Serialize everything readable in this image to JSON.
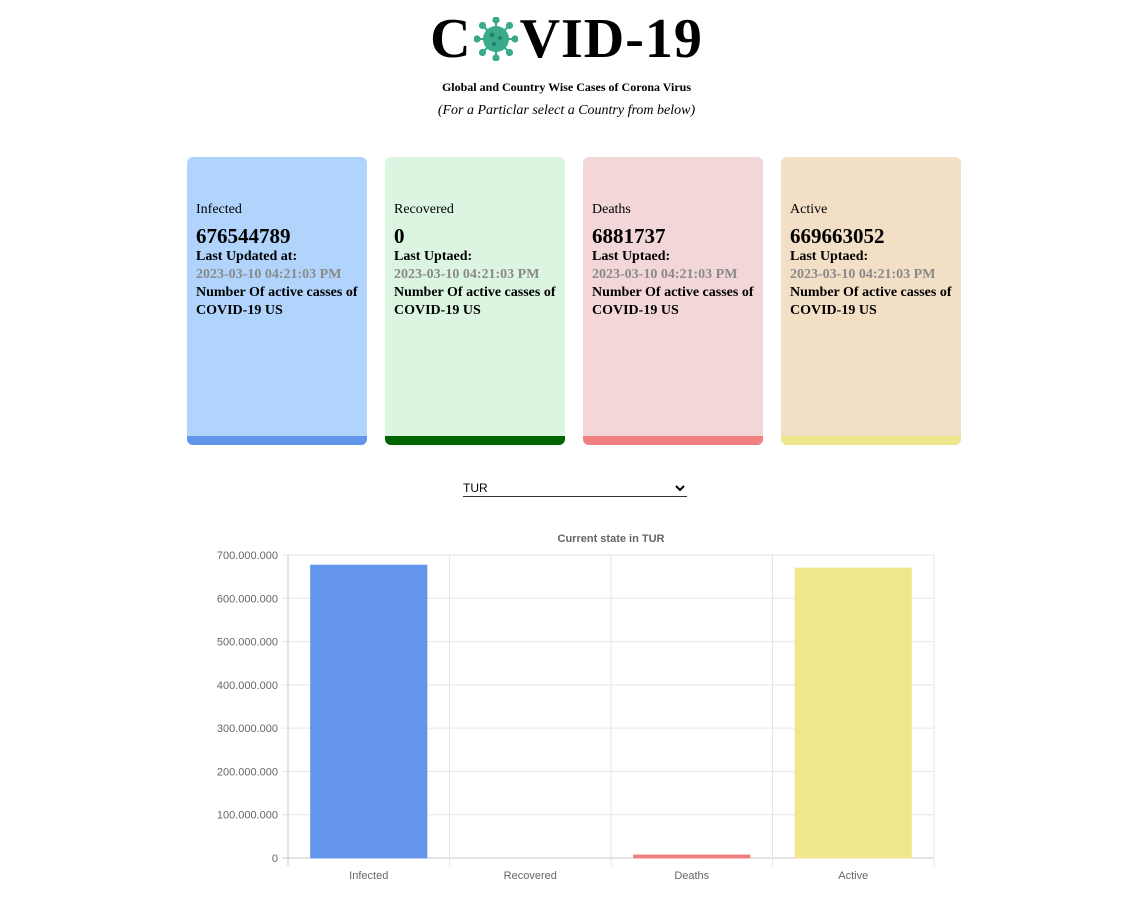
{
  "logo": {
    "text_before": "C",
    "text_after": "VID-19",
    "icon": "virus-icon",
    "icon_color": "#3aaa8c"
  },
  "subtitle": "Global and Country Wise Cases of Corona Virus",
  "hint": "(For a Particlar select a Country from below)",
  "cards": [
    {
      "key": "infected",
      "title": "Infected",
      "number": "676544789",
      "updated_label": "Last Updated at:",
      "updated_value": "2023-03-10 04:21:03 PM",
      "description": "Number Of active casses of COVID-19 US",
      "bg_color": "#b0d4fb",
      "bar_color": "#6495ed"
    },
    {
      "key": "recovered",
      "title": "Recovered",
      "number": "0",
      "updated_label": "Last Uptaed:",
      "updated_value": "2023-03-10 04:21:03 PM",
      "description": "Number Of active casses of COVID-19 US",
      "bg_color": "#dbf5e1",
      "bar_color": "#006400"
    },
    {
      "key": "deaths",
      "title": "Deaths",
      "number": "6881737",
      "updated_label": "Last Uptaed:",
      "updated_value": "2023-03-10 04:21:03 PM",
      "description": "Number Of active casses of COVID-19 US",
      "bg_color": "#f3d6d8",
      "bar_color": "#f08080"
    },
    {
      "key": "active",
      "title": "Active",
      "number": "669663052",
      "updated_label": "Last Uptaed:",
      "updated_value": "2023-03-10 04:21:03 PM",
      "description": "Number Of active casses of COVID-19 US",
      "bg_color": "#f2dfc6",
      "bar_color": "#f0e68c"
    }
  ],
  "country_select": {
    "selected": "TUR",
    "icon": "chevron-down-icon"
  },
  "chart_data": {
    "type": "bar",
    "title": "Current state in TUR",
    "categories": [
      "Infected",
      "Recovered",
      "Deaths",
      "Active"
    ],
    "values": [
      676544789,
      0,
      6881737,
      669663052
    ],
    "colors": [
      "#6495ed",
      "#006400",
      "#f08080",
      "#f0e68c"
    ],
    "ylim": [
      0,
      700000000
    ],
    "yticks": [
      0,
      100000000,
      200000000,
      300000000,
      400000000,
      500000000,
      600000000,
      700000000
    ],
    "ytick_labels": [
      "0",
      "100.000.000",
      "200.000.000",
      "300.000.000",
      "400.000.000",
      "500.000.000",
      "600.000.000",
      "700.000.000"
    ],
    "grid": true,
    "legend": "none"
  }
}
